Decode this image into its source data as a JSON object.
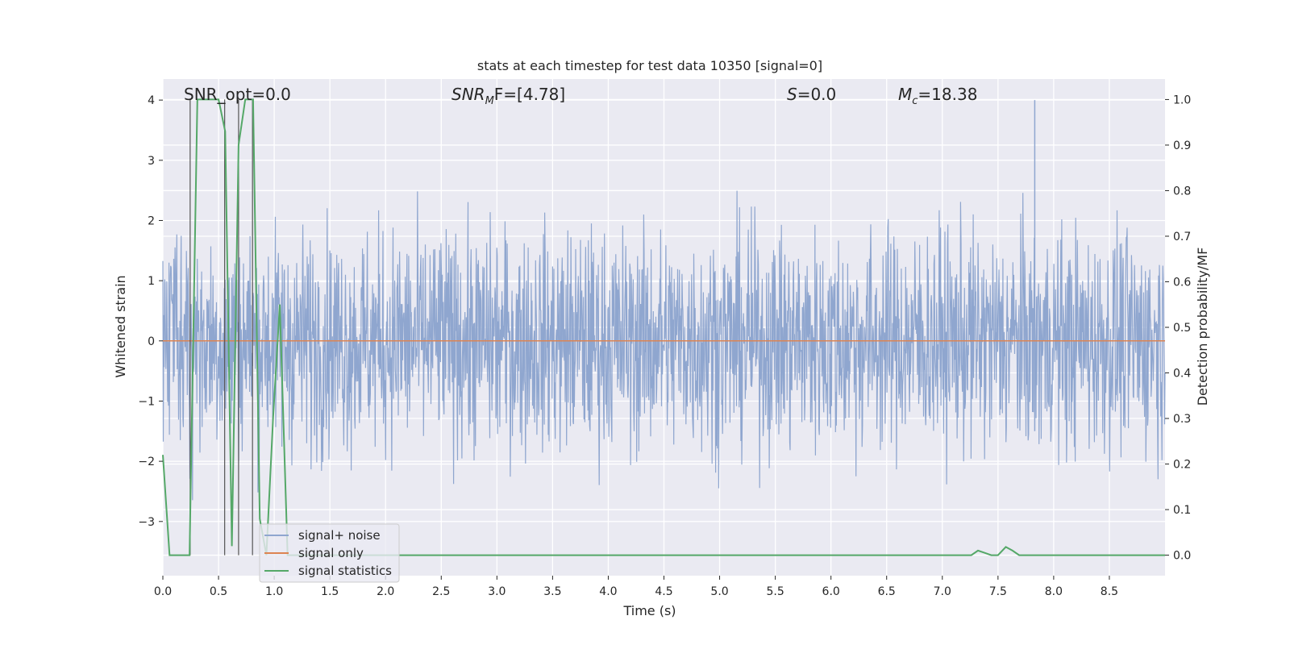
{
  "chart_data": {
    "type": "line",
    "title": "stats at each timestep for test data 10350 [signal=0]",
    "xlabel": "Time (s)",
    "ylabel_left": "Whitened strain",
    "ylabel_right": "Detection probability/MF",
    "xlim": [
      0.0,
      9.0
    ],
    "ylim_left": [
      -3.9,
      4.35
    ],
    "ylim_right": [
      -0.045,
      1.045
    ],
    "x_ticks": [
      0.0,
      0.5,
      1.0,
      1.5,
      2.0,
      2.5,
      3.0,
      3.5,
      4.0,
      4.5,
      5.0,
      5.5,
      6.0,
      6.5,
      7.0,
      7.5,
      8.0,
      8.5
    ],
    "x_tick_labels": [
      "0.0",
      "0.5",
      "1.0",
      "1.5",
      "2.0",
      "2.5",
      "3.0",
      "3.5",
      "4.0",
      "4.5",
      "5.0",
      "5.5",
      "6.0",
      "6.5",
      "7.0",
      "7.5",
      "8.0",
      "8.5"
    ],
    "y_ticks_left": [
      4,
      3,
      2,
      1,
      0,
      -1,
      -2,
      -3
    ],
    "y_tick_labels_left": [
      "4",
      "3",
      "2",
      "1",
      "0",
      "−1",
      "−2",
      "−3"
    ],
    "y_ticks_right": [
      1.0,
      0.9,
      0.8,
      0.7,
      0.6,
      0.5,
      0.4,
      0.3,
      0.2,
      0.1,
      0.0
    ],
    "y_tick_labels_right": [
      "1.0",
      "0.9",
      "0.8",
      "0.7",
      "0.6",
      "0.5",
      "0.4",
      "0.3",
      "0.2",
      "0.1",
      "0.0"
    ],
    "annotations": {
      "snr_opt": "SNR_opt=0.0",
      "snr_mf_label": "SNR",
      "snr_mf_sub": "M",
      "snr_mf_rest": "F=[4.78]",
      "s_label": "S",
      "s_rest": "=0.0",
      "mc_label": "M",
      "mc_sub": "c",
      "mc_rest": "=18.38"
    },
    "series": [
      {
        "name": "signal+ noise",
        "color": "#8fa6cf",
        "description": "whitened noisy strain, approx. gaussian within ±2.3 with peaks up to 4.0 near t=7.83 and down to -3.6"
      },
      {
        "name": "signal only",
        "color": "#dd8452",
        "x": [
          0.0,
          9.0
        ],
        "y": [
          0.0,
          0.0
        ]
      },
      {
        "name": "signal statistics",
        "color": "#55a868",
        "x": [
          0.0,
          0.06,
          0.1,
          0.18,
          0.24,
          0.31,
          0.37,
          0.43,
          0.5,
          0.56,
          0.62,
          0.68,
          0.74,
          0.81,
          0.87,
          0.93,
          0.99,
          1.05,
          1.12,
          1.18,
          1.24,
          1.3,
          7.26,
          7.32,
          7.38,
          7.44,
          7.5,
          7.57,
          7.63,
          7.69,
          9.0
        ],
        "y": [
          0.22,
          0.0,
          0.0,
          0.0,
          0.0,
          1.0,
          1.0,
          1.0,
          1.0,
          0.93,
          0.02,
          0.9,
          1.0,
          1.0,
          0.08,
          0.0,
          0.3,
          0.55,
          0.0,
          0.0,
          0.0,
          0.0,
          0.0,
          0.01,
          0.005,
          0.0,
          0.0,
          0.018,
          0.01,
          0.0,
          0.0
        ]
      }
    ],
    "vertical_markers_x": [
      0.245,
      0.555,
      0.68,
      0.805
    ],
    "legend": {
      "placement": "lower-left",
      "entries": [
        "signal+ noise",
        "signal only",
        "signal statistics"
      ]
    }
  }
}
